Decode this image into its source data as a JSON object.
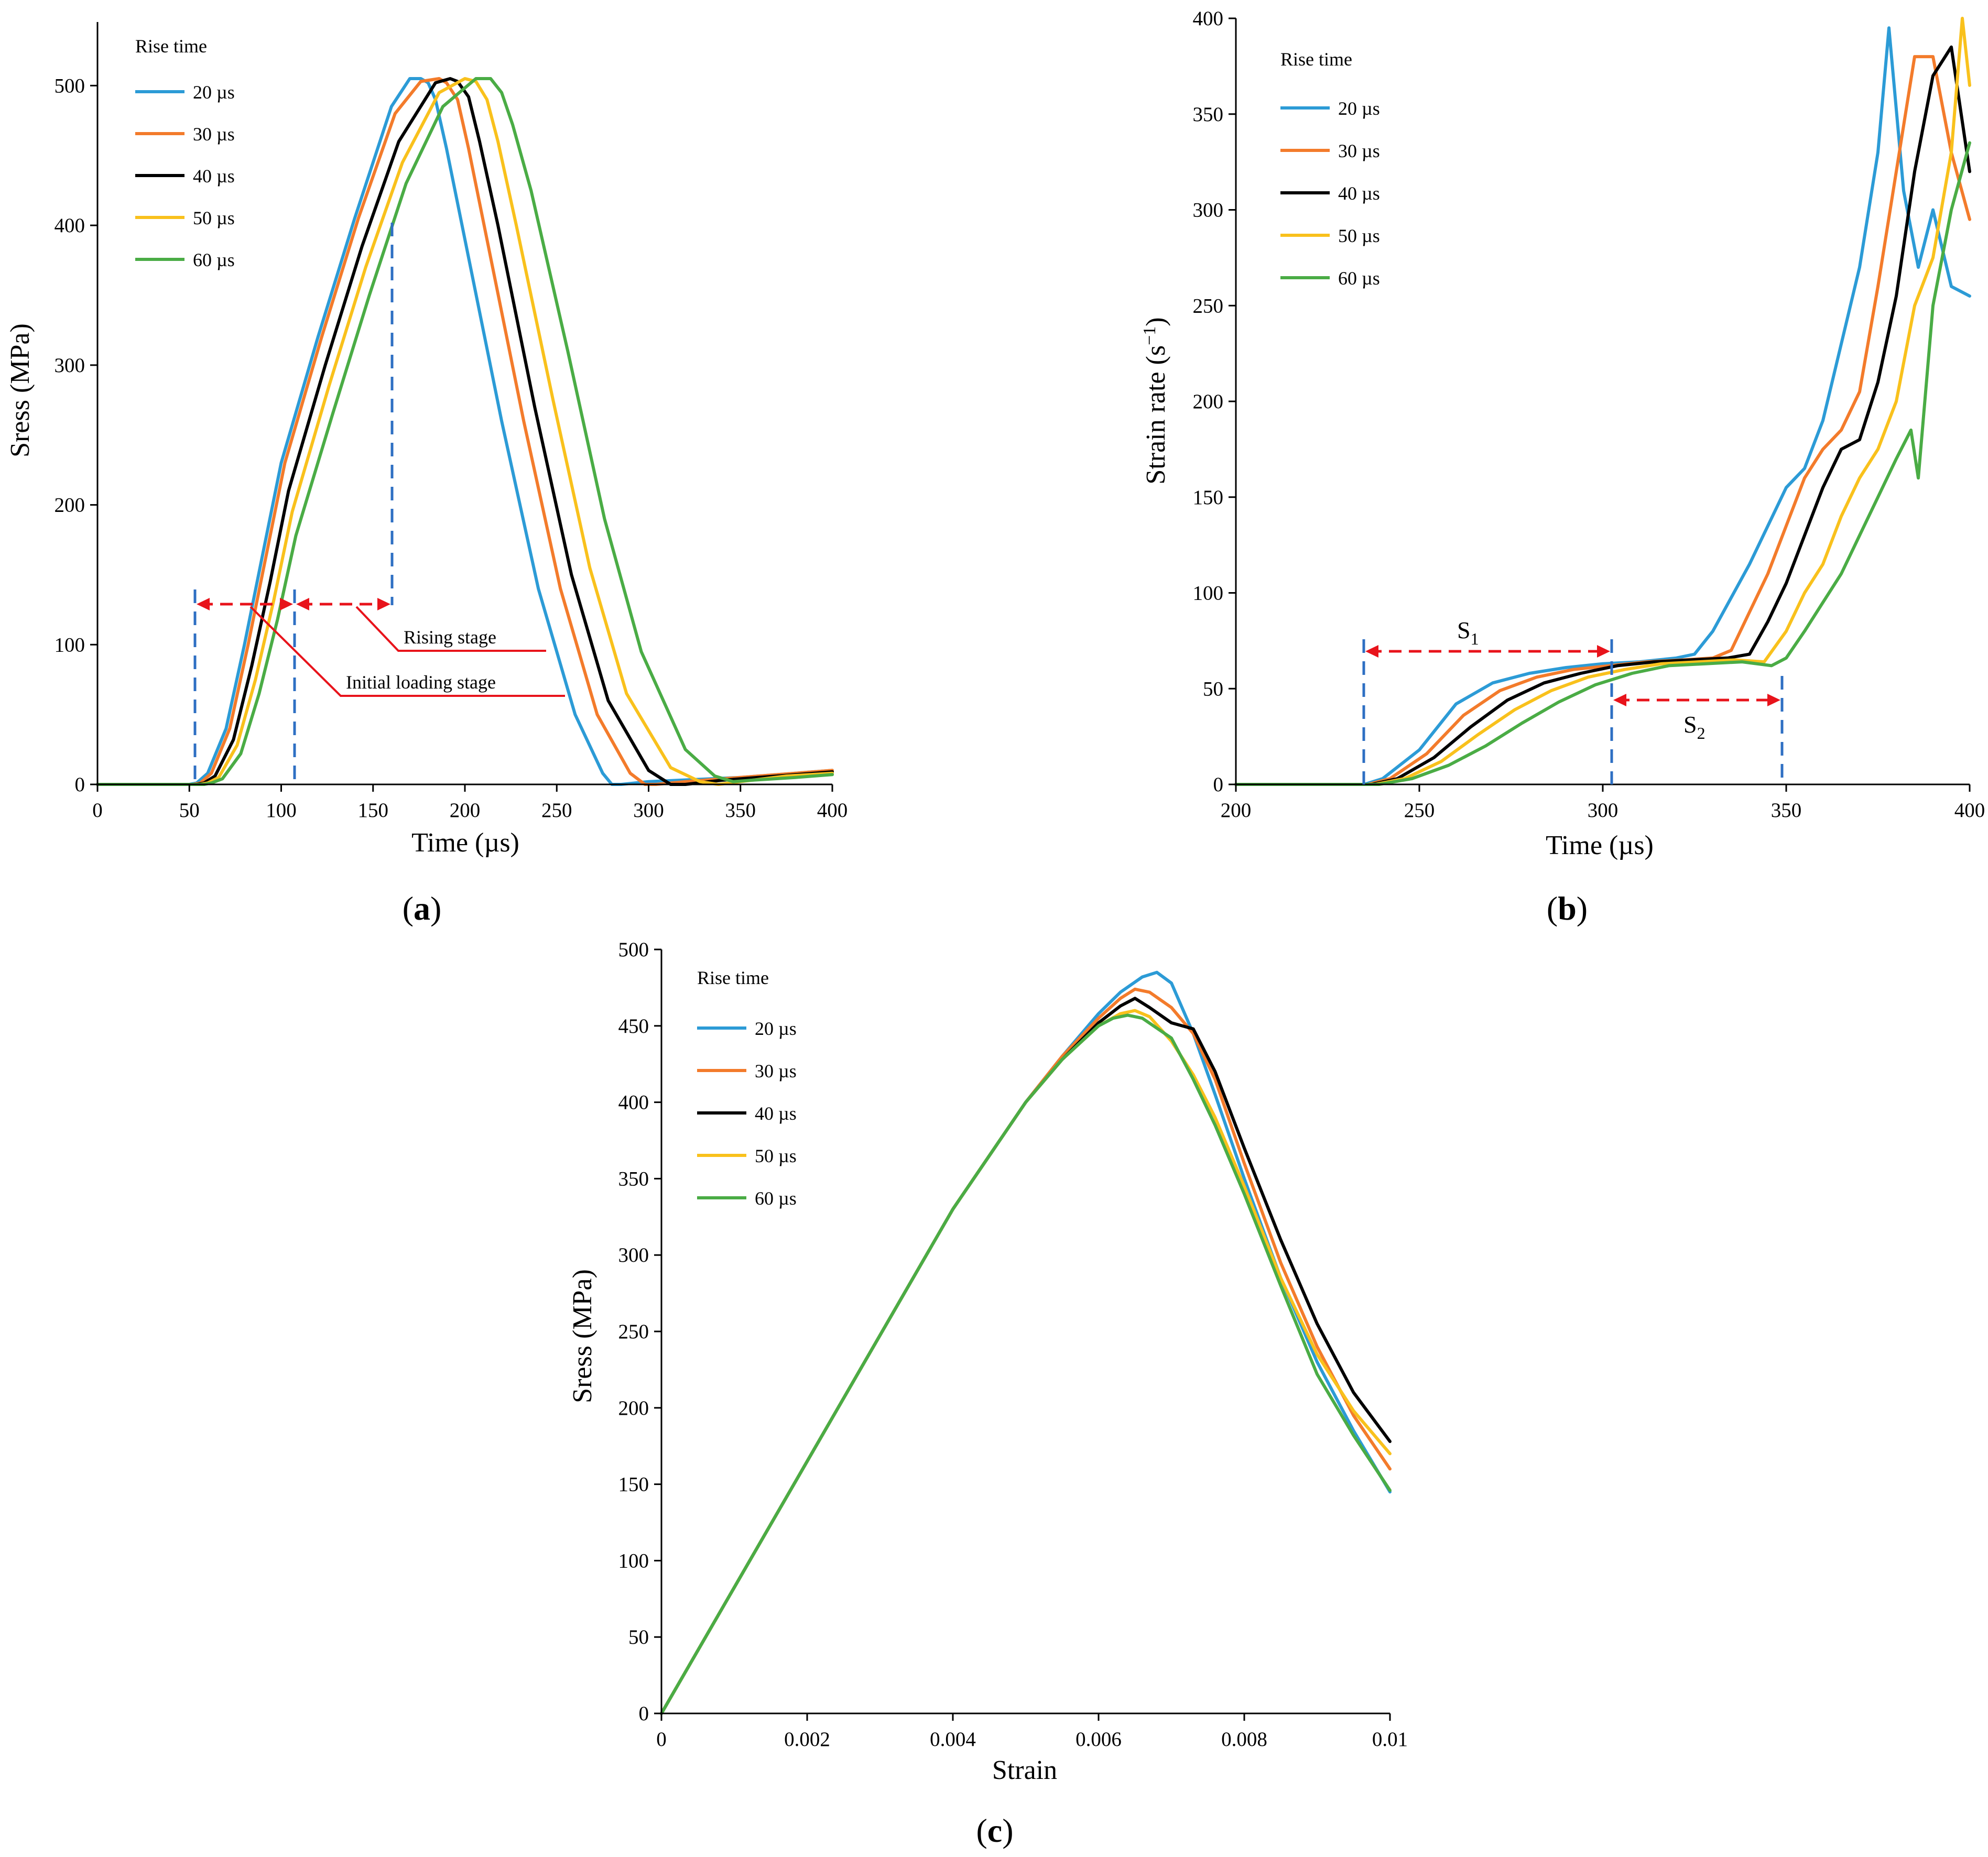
{
  "colors": {
    "20": "#2c9bd6",
    "30": "#f37b2b",
    "40": "#000000",
    "50": "#f9c11c",
    "60": "#4aac45",
    "guide": "#2e6fc3",
    "arrow": "#e8131b"
  },
  "legend": {
    "title": "Rise time",
    "labels": [
      "20 µs",
      "30 µs",
      "40 µs",
      "50 µs",
      "60 µs"
    ]
  },
  "captions": {
    "a": "a",
    "b": "b",
    "c": "c"
  },
  "annotations": {
    "rising": "Rising stage",
    "initial": "Initial loading stage",
    "s1": "S",
    "s1sub": "1",
    "s2": "S",
    "s2sub": "2"
  },
  "chart_data": [
    {
      "id": "a",
      "type": "line",
      "xlabel": "Time (µs)",
      "ylabel": "Sress (MPa)",
      "xlim": [
        0,
        400
      ],
      "ylim": [
        0,
        550
      ],
      "xticks": [
        0,
        50,
        100,
        150,
        200,
        250,
        300,
        350,
        400
      ],
      "yticks": [
        0,
        100,
        200,
        300,
        400,
        500
      ],
      "series": [
        {
          "name": "20 µs",
          "x": [
            0,
            50,
            54,
            60,
            70,
            80,
            90,
            100,
            120,
            140,
            160,
            170,
            176,
            180,
            184,
            190,
            200,
            220,
            240,
            260,
            275,
            280,
            285,
            300,
            350,
            400
          ],
          "y": [
            0,
            0,
            1,
            8,
            40,
            100,
            165,
            230,
            320,
            405,
            485,
            505,
            505,
            502,
            490,
            455,
            390,
            260,
            140,
            50,
            8,
            0,
            0,
            2,
            5,
            10
          ]
        },
        {
          "name": "30 µs",
          "x": [
            0,
            52,
            56,
            62,
            72,
            82,
            92,
            102,
            122,
            142,
            162,
            176,
            186,
            190,
            196,
            202,
            212,
            232,
            252,
            272,
            290,
            298,
            304,
            320,
            360,
            400
          ],
          "y": [
            0,
            0,
            1,
            8,
            40,
            100,
            165,
            230,
            320,
            405,
            480,
            503,
            505,
            502,
            490,
            455,
            390,
            260,
            140,
            50,
            8,
            0,
            0,
            2,
            6,
            10
          ]
        },
        {
          "name": "40 µs",
          "x": [
            0,
            54,
            58,
            64,
            74,
            84,
            94,
            104,
            124,
            144,
            164,
            184,
            192,
            196,
            202,
            208,
            218,
            238,
            258,
            278,
            300,
            312,
            320,
            340,
            370,
            400
          ],
          "y": [
            0,
            0,
            1,
            6,
            32,
            85,
            145,
            210,
            300,
            385,
            460,
            502,
            505,
            503,
            492,
            460,
            400,
            270,
            150,
            60,
            10,
            0,
            0,
            3,
            6,
            9
          ]
        },
        {
          "name": "50 µs",
          "x": [
            0,
            56,
            60,
            66,
            76,
            86,
            96,
            106,
            126,
            146,
            166,
            186,
            200,
            206,
            212,
            218,
            228,
            248,
            268,
            288,
            312,
            328,
            338,
            350,
            375,
            400
          ],
          "y": [
            0,
            0,
            1,
            5,
            28,
            75,
            132,
            195,
            285,
            370,
            445,
            495,
            505,
            503,
            490,
            460,
            400,
            275,
            155,
            65,
            12,
            2,
            0,
            2,
            6,
            8
          ]
        },
        {
          "name": "60 µs",
          "x": [
            0,
            58,
            62,
            68,
            78,
            88,
            98,
            108,
            128,
            148,
            168,
            188,
            206,
            214,
            220,
            226,
            236,
            256,
            276,
            296,
            320,
            336,
            346,
            356,
            380,
            400
          ],
          "y": [
            0,
            0,
            1,
            4,
            22,
            65,
            118,
            178,
            265,
            350,
            430,
            485,
            505,
            505,
            495,
            472,
            425,
            310,
            190,
            95,
            25,
            6,
            2,
            3,
            5,
            7
          ]
        }
      ]
    },
    {
      "id": "b",
      "type": "line",
      "xlabel": "Time (µs)",
      "ylabel": "Strain rate (s−1)",
      "xlim": [
        200,
        400
      ],
      "ylim": [
        0,
        400
      ],
      "xticks": [
        200,
        250,
        300,
        350,
        400
      ],
      "yticks": [
        0,
        50,
        100,
        150,
        200,
        250,
        300,
        350,
        400
      ],
      "series": [
        {
          "name": "20 µs",
          "x": [
            200,
            235,
            240,
            250,
            260,
            270,
            280,
            290,
            300,
            310,
            320,
            325,
            330,
            340,
            350,
            355,
            360,
            365,
            370,
            375,
            378,
            382,
            386,
            390,
            395,
            400
          ],
          "y": [
            0,
            0,
            3,
            18,
            42,
            53,
            58,
            61,
            63,
            64,
            66,
            68,
            80,
            115,
            155,
            165,
            190,
            230,
            270,
            330,
            395,
            310,
            270,
            300,
            260,
            255
          ]
        },
        {
          "name": "30 µs",
          "x": [
            200,
            236,
            242,
            252,
            262,
            272,
            282,
            292,
            302,
            312,
            322,
            330,
            335,
            340,
            345,
            350,
            355,
            360,
            365,
            370,
            375,
            380,
            385,
            390,
            395,
            400
          ],
          "y": [
            0,
            0,
            3,
            16,
            36,
            49,
            56,
            60,
            62,
            64,
            65,
            66,
            70,
            90,
            110,
            135,
            160,
            175,
            185,
            205,
            260,
            320,
            380,
            380,
            330,
            295
          ]
        },
        {
          "name": "40 µs",
          "x": [
            200,
            237,
            244,
            254,
            264,
            274,
            284,
            294,
            304,
            314,
            324,
            334,
            340,
            345,
            350,
            355,
            360,
            365,
            370,
            375,
            380,
            385,
            390,
            395,
            400
          ],
          "y": [
            0,
            0,
            3,
            14,
            30,
            44,
            53,
            58,
            62,
            64,
            65,
            66,
            68,
            85,
            105,
            130,
            155,
            175,
            180,
            210,
            255,
            320,
            370,
            385,
            320
          ]
        },
        {
          "name": "50 µs",
          "x": [
            200,
            238,
            246,
            256,
            266,
            276,
            286,
            296,
            306,
            316,
            326,
            336,
            344,
            350,
            355,
            360,
            365,
            370,
            375,
            380,
            385,
            390,
            395,
            398,
            400
          ],
          "y": [
            0,
            0,
            3,
            12,
            26,
            39,
            49,
            56,
            60,
            63,
            64,
            65,
            64,
            80,
            100,
            115,
            140,
            160,
            175,
            200,
            250,
            275,
            330,
            400,
            365
          ]
        },
        {
          "name": "60 µs",
          "x": [
            200,
            239,
            248,
            258,
            268,
            278,
            288,
            298,
            308,
            318,
            328,
            338,
            346,
            350,
            355,
            360,
            365,
            370,
            375,
            380,
            384,
            386,
            390,
            395,
            400
          ],
          "y": [
            0,
            0,
            3,
            10,
            20,
            32,
            43,
            52,
            58,
            62,
            63,
            64,
            62,
            66,
            80,
            95,
            110,
            130,
            150,
            170,
            185,
            160,
            250,
            300,
            335
          ]
        }
      ]
    },
    {
      "id": "c",
      "type": "line",
      "xlabel": "Strain",
      "ylabel": "Sress (MPa)",
      "xlim": [
        0,
        0.01
      ],
      "ylim": [
        0,
        500
      ],
      "xticks": [
        "0",
        "0.002",
        "0.004",
        "0.006",
        "0.008",
        "0.01"
      ],
      "yticks": [
        0,
        50,
        100,
        150,
        200,
        250,
        300,
        350,
        400,
        450,
        500
      ],
      "series": [
        {
          "name": "20 µs",
          "x": [
            0,
            0.002,
            0.004,
            0.005,
            0.0055,
            0.006,
            0.0063,
            0.0066,
            0.0068,
            0.007,
            0.0073,
            0.0076,
            0.008,
            0.0085,
            0.009,
            0.0095,
            0.01
          ],
          "y": [
            0,
            165,
            330,
            400,
            430,
            458,
            472,
            482,
            485,
            478,
            445,
            405,
            350,
            285,
            230,
            185,
            145
          ]
        },
        {
          "name": "30 µs",
          "x": [
            0,
            0.002,
            0.004,
            0.005,
            0.0055,
            0.006,
            0.0063,
            0.0065,
            0.0067,
            0.007,
            0.0073,
            0.0076,
            0.008,
            0.0085,
            0.009,
            0.0095,
            0.01
          ],
          "y": [
            0,
            165,
            330,
            400,
            430,
            455,
            468,
            474,
            472,
            462,
            445,
            415,
            360,
            295,
            240,
            195,
            160
          ]
        },
        {
          "name": "40 µs",
          "x": [
            0,
            0.002,
            0.004,
            0.005,
            0.0055,
            0.006,
            0.0063,
            0.0065,
            0.0067,
            0.007,
            0.0073,
            0.0076,
            0.008,
            0.0085,
            0.009,
            0.0095,
            0.01
          ],
          "y": [
            0,
            165,
            330,
            400,
            428,
            452,
            463,
            468,
            462,
            452,
            448,
            420,
            370,
            310,
            255,
            210,
            178
          ]
        },
        {
          "name": "50 µs",
          "x": [
            0,
            0.002,
            0.004,
            0.005,
            0.0055,
            0.006,
            0.0063,
            0.0065,
            0.0067,
            0.007,
            0.0073,
            0.0076,
            0.008,
            0.0085,
            0.009,
            0.0095,
            0.01
          ],
          "y": [
            0,
            165,
            330,
            400,
            428,
            450,
            458,
            460,
            456,
            440,
            418,
            390,
            345,
            285,
            235,
            198,
            170
          ]
        },
        {
          "name": "60 µs",
          "x": [
            0,
            0.002,
            0.004,
            0.005,
            0.0055,
            0.006,
            0.0062,
            0.0064,
            0.0066,
            0.007,
            0.0073,
            0.0076,
            0.008,
            0.0085,
            0.009,
            0.0095,
            0.01
          ],
          "y": [
            0,
            165,
            330,
            400,
            428,
            450,
            455,
            457,
            455,
            442,
            415,
            385,
            340,
            280,
            222,
            182,
            146
          ]
        }
      ]
    }
  ]
}
